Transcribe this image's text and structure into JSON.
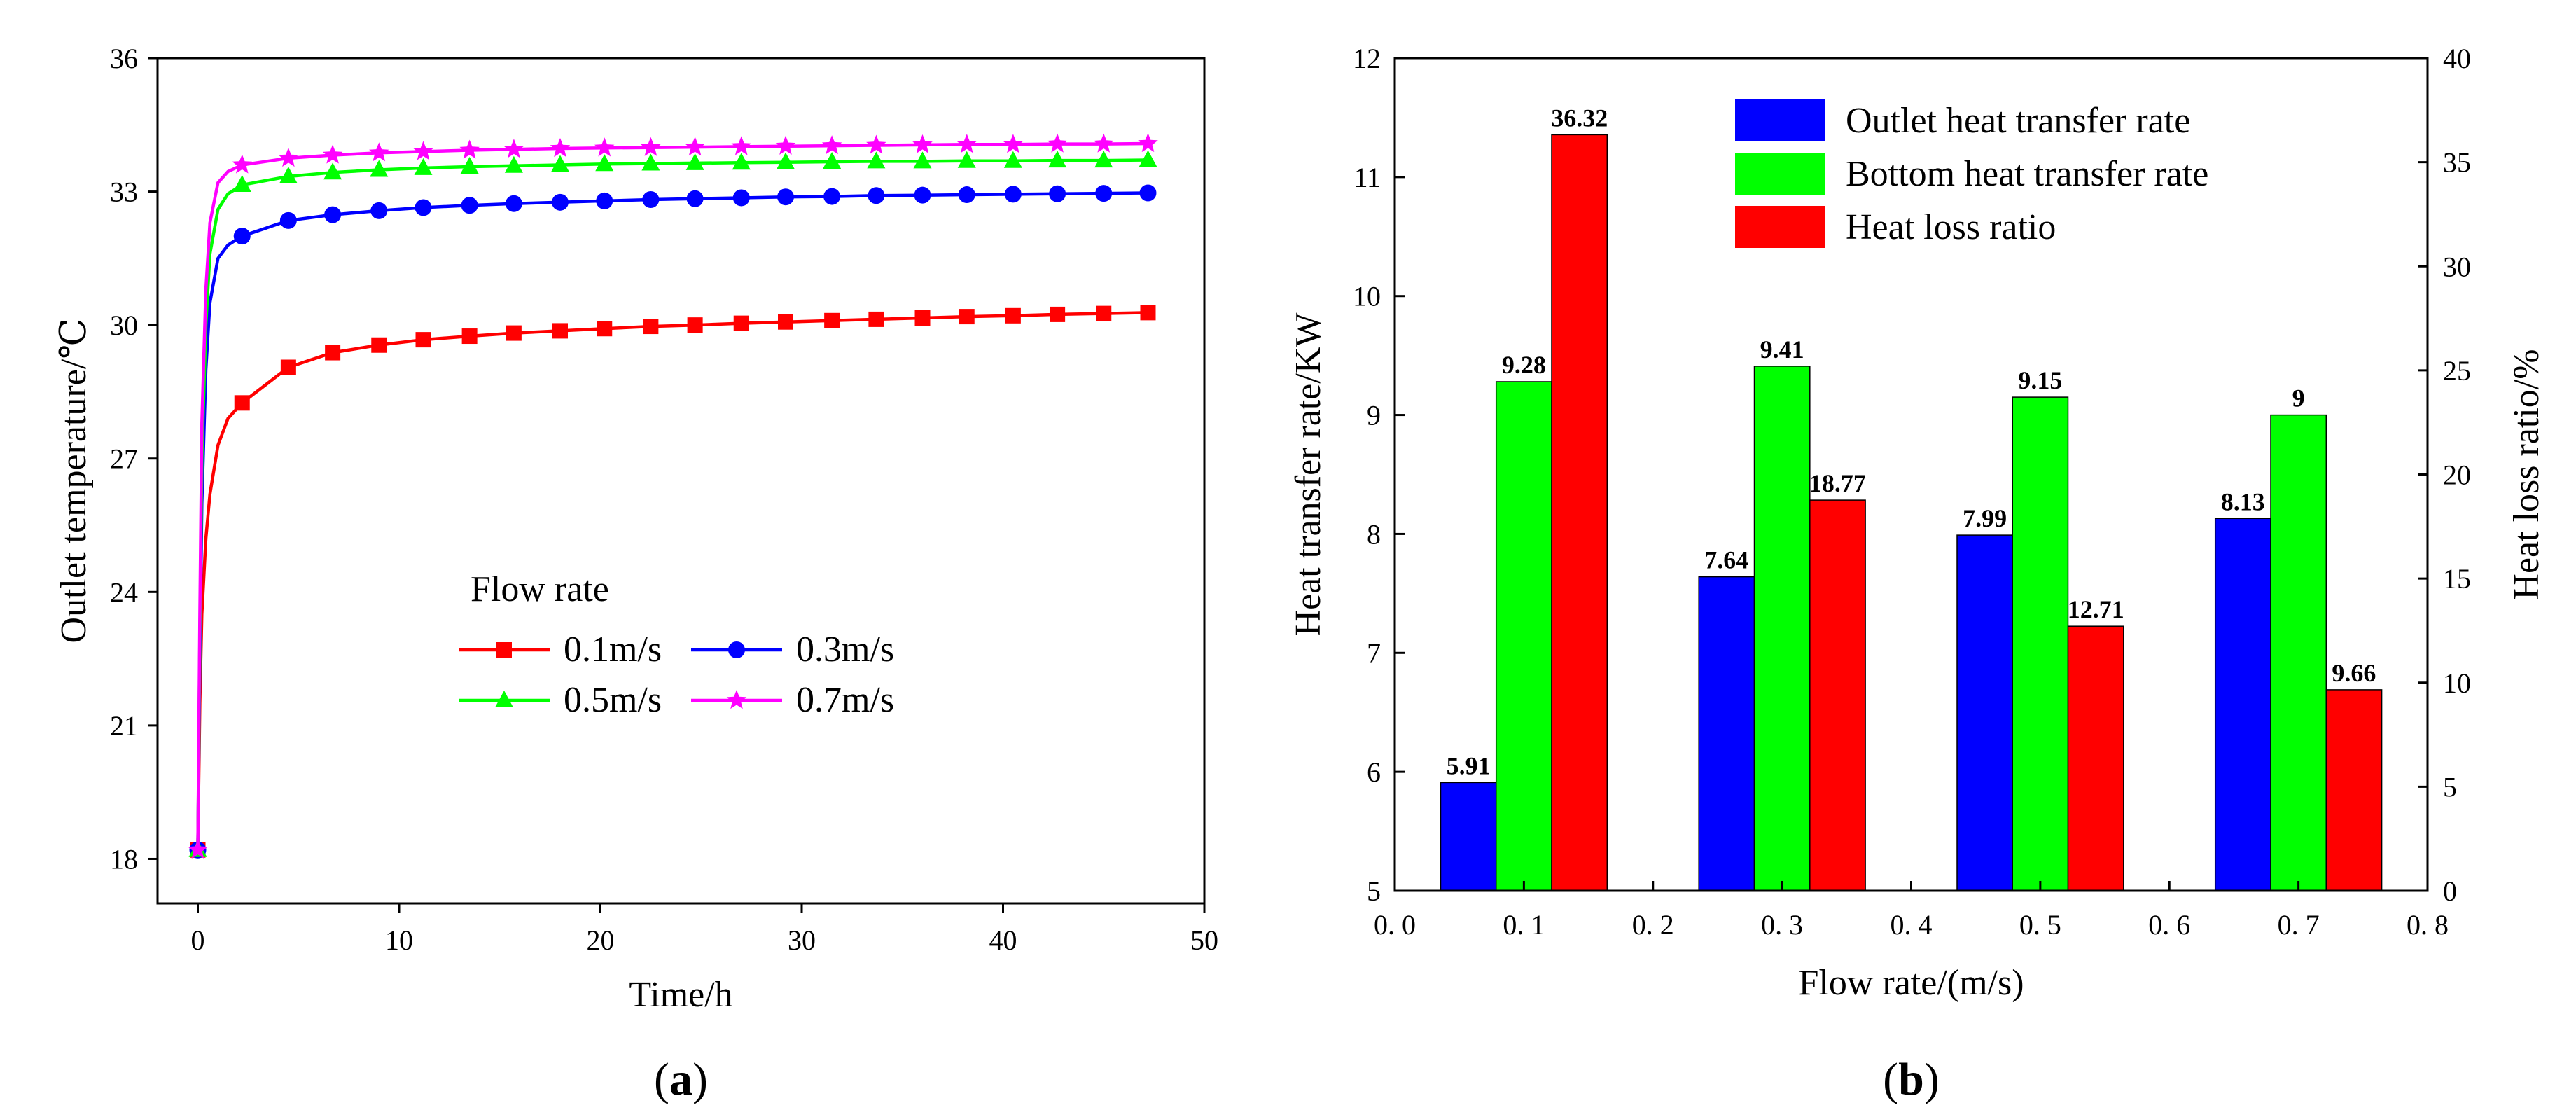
{
  "chart_data": [
    {
      "type": "line",
      "panel_label": "(a)",
      "panel_letter": "a",
      "xlabel": "Time/h",
      "ylabel": "Outlet temperature/℃",
      "xlim": [
        -2,
        50
      ],
      "ylim": [
        17,
        36
      ],
      "xticks": [
        "0",
        "10",
        "20",
        "30",
        "40",
        "50"
      ],
      "yticks": [
        "18",
        "21",
        "24",
        "27",
        "30",
        "33",
        "36"
      ],
      "legend_title": "Flow rate",
      "legend_position": "center-right",
      "series": [
        {
          "name": "0.1m/s",
          "color": "#ff0000",
          "marker": "square",
          "final_value": 30.3,
          "x": [
            0,
            0.1,
            0.2,
            0.4,
            0.6,
            1,
            1.5,
            2.2,
            4.5,
            6.7,
            9,
            11.2,
            13.5,
            15.7,
            18,
            20.2,
            22.5,
            24.7,
            27,
            29.2,
            31.5,
            33.7,
            36,
            38.2,
            40.5,
            42.7,
            45,
            47.2
          ],
          "y": [
            18.2,
            21.5,
            23.5,
            25.2,
            26.2,
            27.3,
            27.9,
            28.25,
            29.05,
            29.38,
            29.55,
            29.67,
            29.75,
            29.82,
            29.87,
            29.92,
            29.97,
            30.0,
            30.04,
            30.07,
            30.1,
            30.13,
            30.16,
            30.19,
            30.21,
            30.24,
            30.26,
            30.28
          ]
        },
        {
          "name": "0.3m/s",
          "color": "#0000ff",
          "marker": "circle",
          "final_value": 33.0,
          "x": [
            0,
            0.1,
            0.2,
            0.4,
            0.6,
            1,
            1.5,
            2.2,
            4.5,
            6.7,
            9,
            11.2,
            13.5,
            15.7,
            18,
            20.2,
            22.5,
            24.7,
            27,
            29.2,
            31.5,
            33.7,
            36,
            38.2,
            40.5,
            42.7,
            45,
            47.2
          ],
          "y": [
            18.2,
            22.5,
            26.0,
            29.0,
            30.5,
            31.5,
            31.8,
            32.0,
            32.35,
            32.48,
            32.57,
            32.64,
            32.69,
            32.73,
            32.76,
            32.79,
            32.82,
            32.84,
            32.86,
            32.88,
            32.89,
            32.91,
            32.92,
            32.93,
            32.94,
            32.95,
            32.96,
            32.97
          ]
        },
        {
          "name": "0.5m/s",
          "color": "#00ff00",
          "marker": "triangle",
          "final_value": 33.7,
          "x": [
            0,
            0.1,
            0.2,
            0.4,
            0.6,
            1,
            1.5,
            2.2,
            4.5,
            6.7,
            9,
            11.2,
            13.5,
            15.7,
            18,
            20.2,
            22.5,
            24.7,
            27,
            29.2,
            31.5,
            33.7,
            36,
            38.2,
            40.5,
            42.7,
            45,
            47.2
          ],
          "y": [
            18.2,
            23.0,
            27.0,
            30.0,
            31.6,
            32.6,
            32.95,
            33.15,
            33.34,
            33.43,
            33.49,
            33.53,
            33.56,
            33.58,
            33.6,
            33.62,
            33.63,
            33.64,
            33.65,
            33.66,
            33.67,
            33.68,
            33.68,
            33.69,
            33.69,
            33.7,
            33.7,
            33.71
          ]
        },
        {
          "name": "0.7m/s",
          "color": "#ff00ff",
          "marker": "star",
          "final_value": 34.1,
          "x": [
            0,
            0.1,
            0.2,
            0.4,
            0.6,
            1,
            1.5,
            2.2,
            4.5,
            6.7,
            9,
            11.2,
            13.5,
            15.7,
            18,
            20.2,
            22.5,
            24.7,
            27,
            29.2,
            31.5,
            33.7,
            36,
            38.2,
            40.5,
            42.7,
            45,
            47.2
          ],
          "y": [
            18.2,
            23.5,
            27.8,
            30.8,
            32.3,
            33.2,
            33.45,
            33.6,
            33.75,
            33.82,
            33.87,
            33.9,
            33.93,
            33.95,
            33.97,
            33.98,
            33.99,
            34.0,
            34.01,
            34.02,
            34.03,
            34.04,
            34.05,
            34.06,
            34.06,
            34.07,
            34.07,
            34.08
          ]
        }
      ]
    },
    {
      "type": "bar",
      "panel_label": "(b)",
      "panel_letter": "b",
      "xlabel": "Flow rate/(m/s)",
      "ylabel_left": "Heat transfer rate/KW",
      "ylabel_right": "Heat loss ratio/%",
      "xlim": [
        0,
        0.8
      ],
      "ylim_left": [
        5,
        12
      ],
      "ylim_right": [
        0,
        40
      ],
      "xticks": [
        "0. 0",
        "0. 1",
        "0. 2",
        "0. 3",
        "0. 4",
        "0. 5",
        "0. 6",
        "0. 7",
        "0. 8"
      ],
      "yticks_left": [
        "5",
        "6",
        "7",
        "8",
        "9",
        "10",
        "11",
        "12"
      ],
      "yticks_right": [
        "0",
        "5",
        "10",
        "15",
        "20",
        "25",
        "30",
        "35",
        "40"
      ],
      "categories": [
        0.1,
        0.3,
        0.5,
        0.7
      ],
      "legend_position": "top-right",
      "series": [
        {
          "name": "Outlet heat transfer rate",
          "color": "#0000ff",
          "axis": "left",
          "values": [
            5.91,
            7.64,
            7.99,
            8.13
          ],
          "labels": [
            "5.91",
            "7.64",
            "7.99",
            "8.13"
          ]
        },
        {
          "name": "Bottom heat transfer rate",
          "color": "#00ff00",
          "axis": "left",
          "values": [
            9.28,
            9.41,
            9.15,
            9.0
          ],
          "labels": [
            "9.28",
            "9.41",
            "9.15",
            "9"
          ]
        },
        {
          "name": "Heat loss ratio",
          "color": "#ff0000",
          "axis": "right",
          "values": [
            36.32,
            18.77,
            12.71,
            9.66
          ],
          "labels": [
            "36.32",
            "18.77",
            "12.71",
            "9.66"
          ]
        }
      ]
    }
  ]
}
